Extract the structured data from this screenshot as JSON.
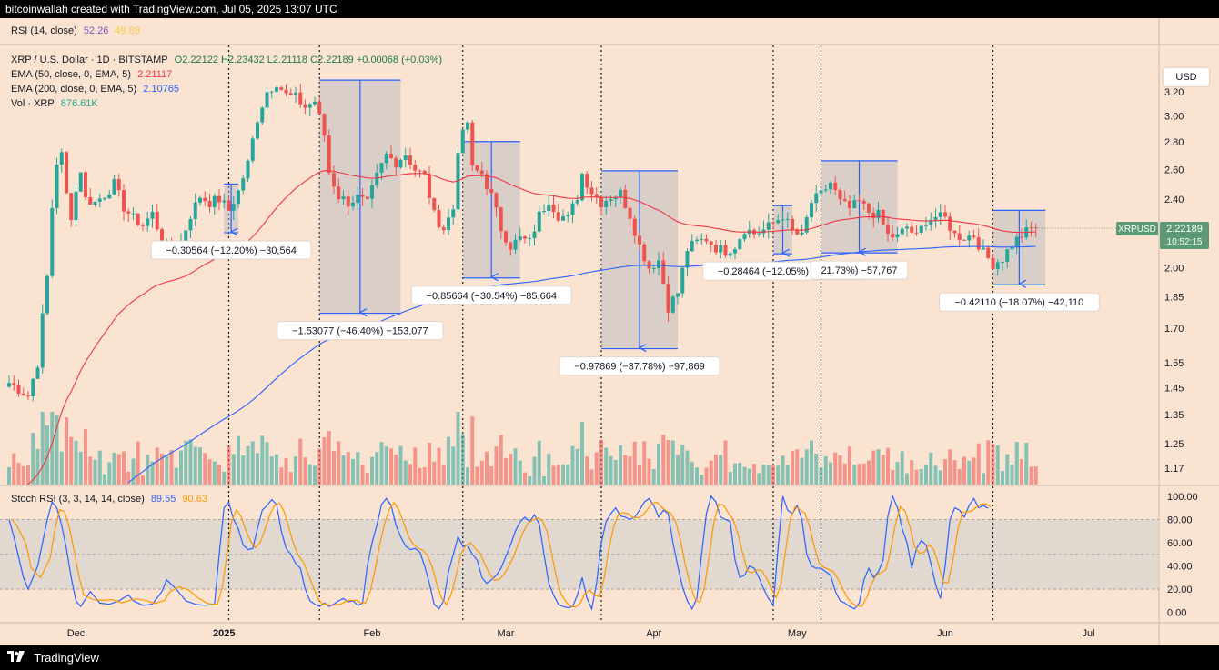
{
  "header": {
    "credit": "bitcoinwallah created with TradingView.com, Jul 05, 2025 13:07 UTC"
  },
  "footer": {
    "brand": "TradingView",
    "logo_icon": "tradingview-logo-icon"
  },
  "rsi_legend": {
    "label": "RSI (14, close)",
    "v1": "52.26",
    "v2": "49.89"
  },
  "main_legend": {
    "symbol": "XRP / U.S. Dollar · 1D · BITSTAMP",
    "ohlc": "O2.22122 H2.23432 L2.21118 C2.22189 +0.00068 (+0.03%)",
    "ema50_label": "EMA (50, close, 0, EMA, 5)",
    "ema50_value": "2.21117",
    "ema200_label": "EMA (200, close, 0, EMA, 5)",
    "ema200_value": "2.10765",
    "vol_label": "Vol · XRP",
    "vol_value": "876.61K"
  },
  "stoch_legend": {
    "label": "Stoch RSI (3, 3, 14, 14, close)",
    "k": "89.55",
    "d": "90.63"
  },
  "currency_button": "USD",
  "price_tag": {
    "symbol": "XRPUSD",
    "price": "2.22189",
    "countdown": "10:52:15"
  },
  "colors": {
    "up": "#26a69a",
    "down": "#ef5350",
    "ema50": "#f23645",
    "ema200": "#2962ff",
    "stoch_k": "#2962ff",
    "stoch_d": "#ff9800",
    "range_fill": "#b2b5be",
    "range_line": "#2962ff",
    "price_tag": "#5b9a74"
  },
  "chart_data": {
    "type": "candlestick",
    "y_scale": "log",
    "ylim": [
      1.12,
      3.62
    ],
    "y_ticks": [
      3.2,
      3.0,
      2.8,
      2.6,
      2.4,
      2.2,
      2.0,
      1.85,
      1.7,
      1.55,
      1.45,
      1.35,
      1.25,
      1.17
    ],
    "x_ticks": [
      "Dec",
      "2025",
      "Feb",
      "Mar",
      "Apr",
      "May",
      "Jun",
      "Jul"
    ],
    "x_range_days": [
      -10,
      231
    ],
    "x_tick_days": [
      4,
      35,
      66,
      94,
      125,
      155,
      186,
      216
    ],
    "vertical_markers_days": [
      36,
      55,
      85,
      114,
      150,
      160,
      196
    ],
    "measurements": [
      {
        "label": "−0.30564 (−12.20%) −30,564",
        "x_days": [
          35,
          38
        ],
        "y_range": [
          2.5,
          2.195
        ]
      },
      {
        "label": "−1.53077 (−46.40%) −153,077",
        "x_days": [
          55,
          72
        ],
        "y_range": [
          3.3,
          1.77
        ]
      },
      {
        "label": "−0.85664 (−30.54%) −85,664",
        "x_days": [
          85,
          97
        ],
        "y_range": [
          2.8,
          1.945
        ]
      },
      {
        "label": "−0.97869 (−37.78%) −97,869",
        "x_days": [
          114,
          130
        ],
        "y_range": [
          2.59,
          1.61
        ]
      },
      {
        "label": "−0.28464 (−12.05%) −28,464",
        "x_days": [
          150,
          154
        ],
        "y_range": [
          2.36,
          2.075
        ]
      },
      {
        "label": "21.73%) −57,767",
        "x_days": [
          160,
          176
        ],
        "y_range": [
          2.66,
          2.08
        ]
      },
      {
        "label": "−0.42110 (−18.07%) −42,110",
        "x_days": [
          196,
          207
        ],
        "y_range": [
          2.33,
          1.91
        ]
      }
    ],
    "price_waypoints": [
      [
        -10,
        1.47
      ],
      [
        -6,
        1.42
      ],
      [
        -4,
        1.55
      ],
      [
        -3,
        1.75
      ],
      [
        -2,
        1.95
      ],
      [
        -1,
        2.35
      ],
      [
        0,
        2.65
      ],
      [
        1,
        2.7
      ],
      [
        2,
        2.43
      ],
      [
        3,
        2.3
      ],
      [
        5,
        2.6
      ],
      [
        6,
        2.4
      ],
      [
        8,
        2.38
      ],
      [
        10,
        2.43
      ],
      [
        12,
        2.5
      ],
      [
        14,
        2.35
      ],
      [
        16,
        2.28
      ],
      [
        18,
        2.24
      ],
      [
        20,
        2.31
      ],
      [
        22,
        2.15
      ],
      [
        24,
        2.08
      ],
      [
        26,
        2.14
      ],
      [
        28,
        2.3
      ],
      [
        30,
        2.42
      ],
      [
        32,
        2.38
      ],
      [
        34,
        2.4
      ],
      [
        36,
        2.33
      ],
      [
        38,
        2.45
      ],
      [
        40,
        2.64
      ],
      [
        42,
        2.98
      ],
      [
        44,
        3.2
      ],
      [
        46,
        3.28
      ],
      [
        48,
        3.17
      ],
      [
        50,
        3.15
      ],
      [
        52,
        3.07
      ],
      [
        54,
        3.12
      ],
      [
        56,
        2.85
      ],
      [
        57,
        2.58
      ],
      [
        59,
        2.42
      ],
      [
        61,
        2.38
      ],
      [
        63,
        2.41
      ],
      [
        65,
        2.37
      ],
      [
        67,
        2.55
      ],
      [
        69,
        2.7
      ],
      [
        71,
        2.65
      ],
      [
        73,
        2.71
      ],
      [
        75,
        2.6
      ],
      [
        77,
        2.55
      ],
      [
        79,
        2.3
      ],
      [
        81,
        2.22
      ],
      [
        83,
        2.34
      ],
      [
        84,
        2.75
      ],
      [
        86,
        2.95
      ],
      [
        87,
        2.6
      ],
      [
        89,
        2.57
      ],
      [
        91,
        2.42
      ],
      [
        93,
        2.22
      ],
      [
        95,
        2.12
      ],
      [
        97,
        2.16
      ],
      [
        99,
        2.14
      ],
      [
        101,
        2.3
      ],
      [
        103,
        2.4
      ],
      [
        105,
        2.3
      ],
      [
        107,
        2.28
      ],
      [
        109,
        2.42
      ],
      [
        110,
        2.57
      ],
      [
        112,
        2.45
      ],
      [
        114,
        2.38
      ],
      [
        116,
        2.42
      ],
      [
        118,
        2.44
      ],
      [
        120,
        2.3
      ],
      [
        122,
        2.12
      ],
      [
        124,
        2.0
      ],
      [
        126,
        2.04
      ],
      [
        128,
        1.8
      ],
      [
        130,
        1.87
      ],
      [
        132,
        2.1
      ],
      [
        134,
        2.14
      ],
      [
        136,
        2.16
      ],
      [
        138,
        2.11
      ],
      [
        140,
        2.09
      ],
      [
        142,
        2.12
      ],
      [
        144,
        2.22
      ],
      [
        146,
        2.19
      ],
      [
        148,
        2.21
      ],
      [
        150,
        2.25
      ],
      [
        152,
        2.3
      ],
      [
        154,
        2.2
      ],
      [
        156,
        2.17
      ],
      [
        158,
        2.38
      ],
      [
        160,
        2.43
      ],
      [
        162,
        2.51
      ],
      [
        164,
        2.38
      ],
      [
        166,
        2.34
      ],
      [
        168,
        2.38
      ],
      [
        170,
        2.32
      ],
      [
        172,
        2.3
      ],
      [
        174,
        2.18
      ],
      [
        176,
        2.17
      ],
      [
        178,
        2.23
      ],
      [
        180,
        2.17
      ],
      [
        182,
        2.27
      ],
      [
        184,
        2.29
      ],
      [
        186,
        2.28
      ],
      [
        188,
        2.18
      ],
      [
        190,
        2.17
      ],
      [
        192,
        2.18
      ],
      [
        194,
        2.08
      ],
      [
        196,
        2.02
      ],
      [
        198,
        2.05
      ],
      [
        200,
        2.13
      ],
      [
        202,
        2.18
      ],
      [
        204,
        2.22
      ],
      [
        205,
        2.22189
      ]
    ],
    "stoch_k_points": [
      [
        -10,
        80
      ],
      [
        -9,
        65
      ],
      [
        -7,
        30
      ],
      [
        -6,
        20
      ],
      [
        -4,
        40
      ],
      [
        -2,
        80
      ],
      [
        -1,
        95
      ],
      [
        0,
        90
      ],
      [
        1,
        75
      ],
      [
        2,
        55
      ],
      [
        3,
        30
      ],
      [
        4,
        10
      ],
      [
        5,
        5
      ],
      [
        7,
        18
      ],
      [
        9,
        8
      ],
      [
        11,
        7
      ],
      [
        13,
        10
      ],
      [
        15,
        15
      ],
      [
        16,
        10
      ],
      [
        18,
        6
      ],
      [
        20,
        7
      ],
      [
        22,
        18
      ],
      [
        23,
        28
      ],
      [
        25,
        20
      ],
      [
        27,
        10
      ],
      [
        29,
        7
      ],
      [
        31,
        6
      ],
      [
        33,
        7
      ],
      [
        34,
        50
      ],
      [
        35,
        90
      ],
      [
        36,
        95
      ],
      [
        37,
        80
      ],
      [
        38,
        72
      ],
      [
        39,
        58
      ],
      [
        40,
        54
      ],
      [
        41,
        55
      ],
      [
        42,
        72
      ],
      [
        43,
        88
      ],
      [
        44,
        92
      ],
      [
        45,
        97
      ],
      [
        46,
        93
      ],
      [
        47,
        70
      ],
      [
        48,
        55
      ],
      [
        49,
        50
      ],
      [
        50,
        42
      ],
      [
        51,
        38
      ],
      [
        52,
        20
      ],
      [
        53,
        10
      ],
      [
        54,
        7
      ],
      [
        55,
        5
      ],
      [
        56,
        8
      ],
      [
        57,
        5
      ],
      [
        58,
        7
      ],
      [
        59,
        10
      ],
      [
        60,
        12
      ],
      [
        61,
        9
      ],
      [
        62,
        10
      ],
      [
        63,
        6
      ],
      [
        64,
        8
      ],
      [
        65,
        40
      ],
      [
        66,
        60
      ],
      [
        67,
        75
      ],
      [
        68,
        93
      ],
      [
        69,
        98
      ],
      [
        70,
        92
      ],
      [
        71,
        75
      ],
      [
        72,
        65
      ],
      [
        73,
        57
      ],
      [
        74,
        54
      ],
      [
        75,
        55
      ],
      [
        76,
        52
      ],
      [
        77,
        40
      ],
      [
        78,
        25
      ],
      [
        79,
        7
      ],
      [
        80,
        3
      ],
      [
        81,
        10
      ],
      [
        82,
        35
      ],
      [
        83,
        50
      ],
      [
        84,
        65
      ],
      [
        85,
        57
      ],
      [
        86,
        58
      ],
      [
        87,
        50
      ],
      [
        88,
        45
      ],
      [
        89,
        30
      ],
      [
        90,
        25
      ],
      [
        91,
        28
      ],
      [
        92,
        32
      ],
      [
        93,
        38
      ],
      [
        94,
        48
      ],
      [
        95,
        58
      ],
      [
        96,
        70
      ],
      [
        97,
        78
      ],
      [
        98,
        82
      ],
      [
        99,
        78
      ],
      [
        100,
        84
      ],
      [
        101,
        76
      ],
      [
        102,
        50
      ],
      [
        103,
        25
      ],
      [
        104,
        15
      ],
      [
        105,
        7
      ],
      [
        106,
        5
      ],
      [
        107,
        4
      ],
      [
        108,
        5
      ],
      [
        109,
        15
      ],
      [
        110,
        30
      ],
      [
        111,
        12
      ],
      [
        112,
        3
      ],
      [
        113,
        25
      ],
      [
        114,
        60
      ],
      [
        115,
        78
      ],
      [
        116,
        85
      ],
      [
        117,
        90
      ],
      [
        118,
        83
      ],
      [
        119,
        82
      ],
      [
        120,
        80
      ],
      [
        121,
        82
      ],
      [
        122,
        88
      ],
      [
        123,
        95
      ],
      [
        124,
        98
      ],
      [
        125,
        92
      ],
      [
        126,
        82
      ],
      [
        127,
        88
      ],
      [
        128,
        85
      ],
      [
        129,
        60
      ],
      [
        130,
        40
      ],
      [
        131,
        22
      ],
      [
        132,
        10
      ],
      [
        133,
        3
      ],
      [
        134,
        12
      ],
      [
        135,
        50
      ],
      [
        136,
        85
      ],
      [
        137,
        100
      ],
      [
        138,
        95
      ],
      [
        139,
        82
      ],
      [
        140,
        80
      ],
      [
        141,
        78
      ],
      [
        142,
        45
      ],
      [
        143,
        30
      ],
      [
        144,
        32
      ],
      [
        145,
        40
      ],
      [
        146,
        38
      ],
      [
        147,
        30
      ],
      [
        148,
        20
      ],
      [
        149,
        12
      ],
      [
        150,
        6
      ],
      [
        151,
        55
      ],
      [
        152,
        100
      ],
      [
        153,
        88
      ],
      [
        154,
        85
      ],
      [
        155,
        92
      ],
      [
        156,
        80
      ],
      [
        157,
        50
      ],
      [
        158,
        40
      ],
      [
        159,
        38
      ],
      [
        160,
        38
      ],
      [
        161,
        35
      ],
      [
        162,
        32
      ],
      [
        163,
        18
      ],
      [
        164,
        10
      ],
      [
        165,
        8
      ],
      [
        166,
        5
      ],
      [
        167,
        3
      ],
      [
        168,
        8
      ],
      [
        169,
        28
      ],
      [
        170,
        38
      ],
      [
        171,
        30
      ],
      [
        172,
        35
      ],
      [
        173,
        45
      ],
      [
        174,
        83
      ],
      [
        175,
        100
      ],
      [
        176,
        90
      ],
      [
        177,
        72
      ],
      [
        178,
        60
      ],
      [
        179,
        38
      ],
      [
        180,
        55
      ],
      [
        181,
        62
      ],
      [
        182,
        58
      ],
      [
        183,
        42
      ],
      [
        184,
        24
      ],
      [
        185,
        12
      ],
      [
        186,
        40
      ],
      [
        187,
        80
      ],
      [
        188,
        90
      ],
      [
        189,
        88
      ],
      [
        190,
        82
      ],
      [
        191,
        92
      ],
      [
        192,
        98
      ],
      [
        193,
        90
      ],
      [
        194,
        92
      ],
      [
        195,
        89.55
      ]
    ],
    "stoch_ylim": [
      -5,
      103
    ],
    "stoch_ticks": [
      100,
      80,
      60,
      40,
      20,
      0
    ],
    "stoch_band": [
      20,
      80
    ]
  }
}
